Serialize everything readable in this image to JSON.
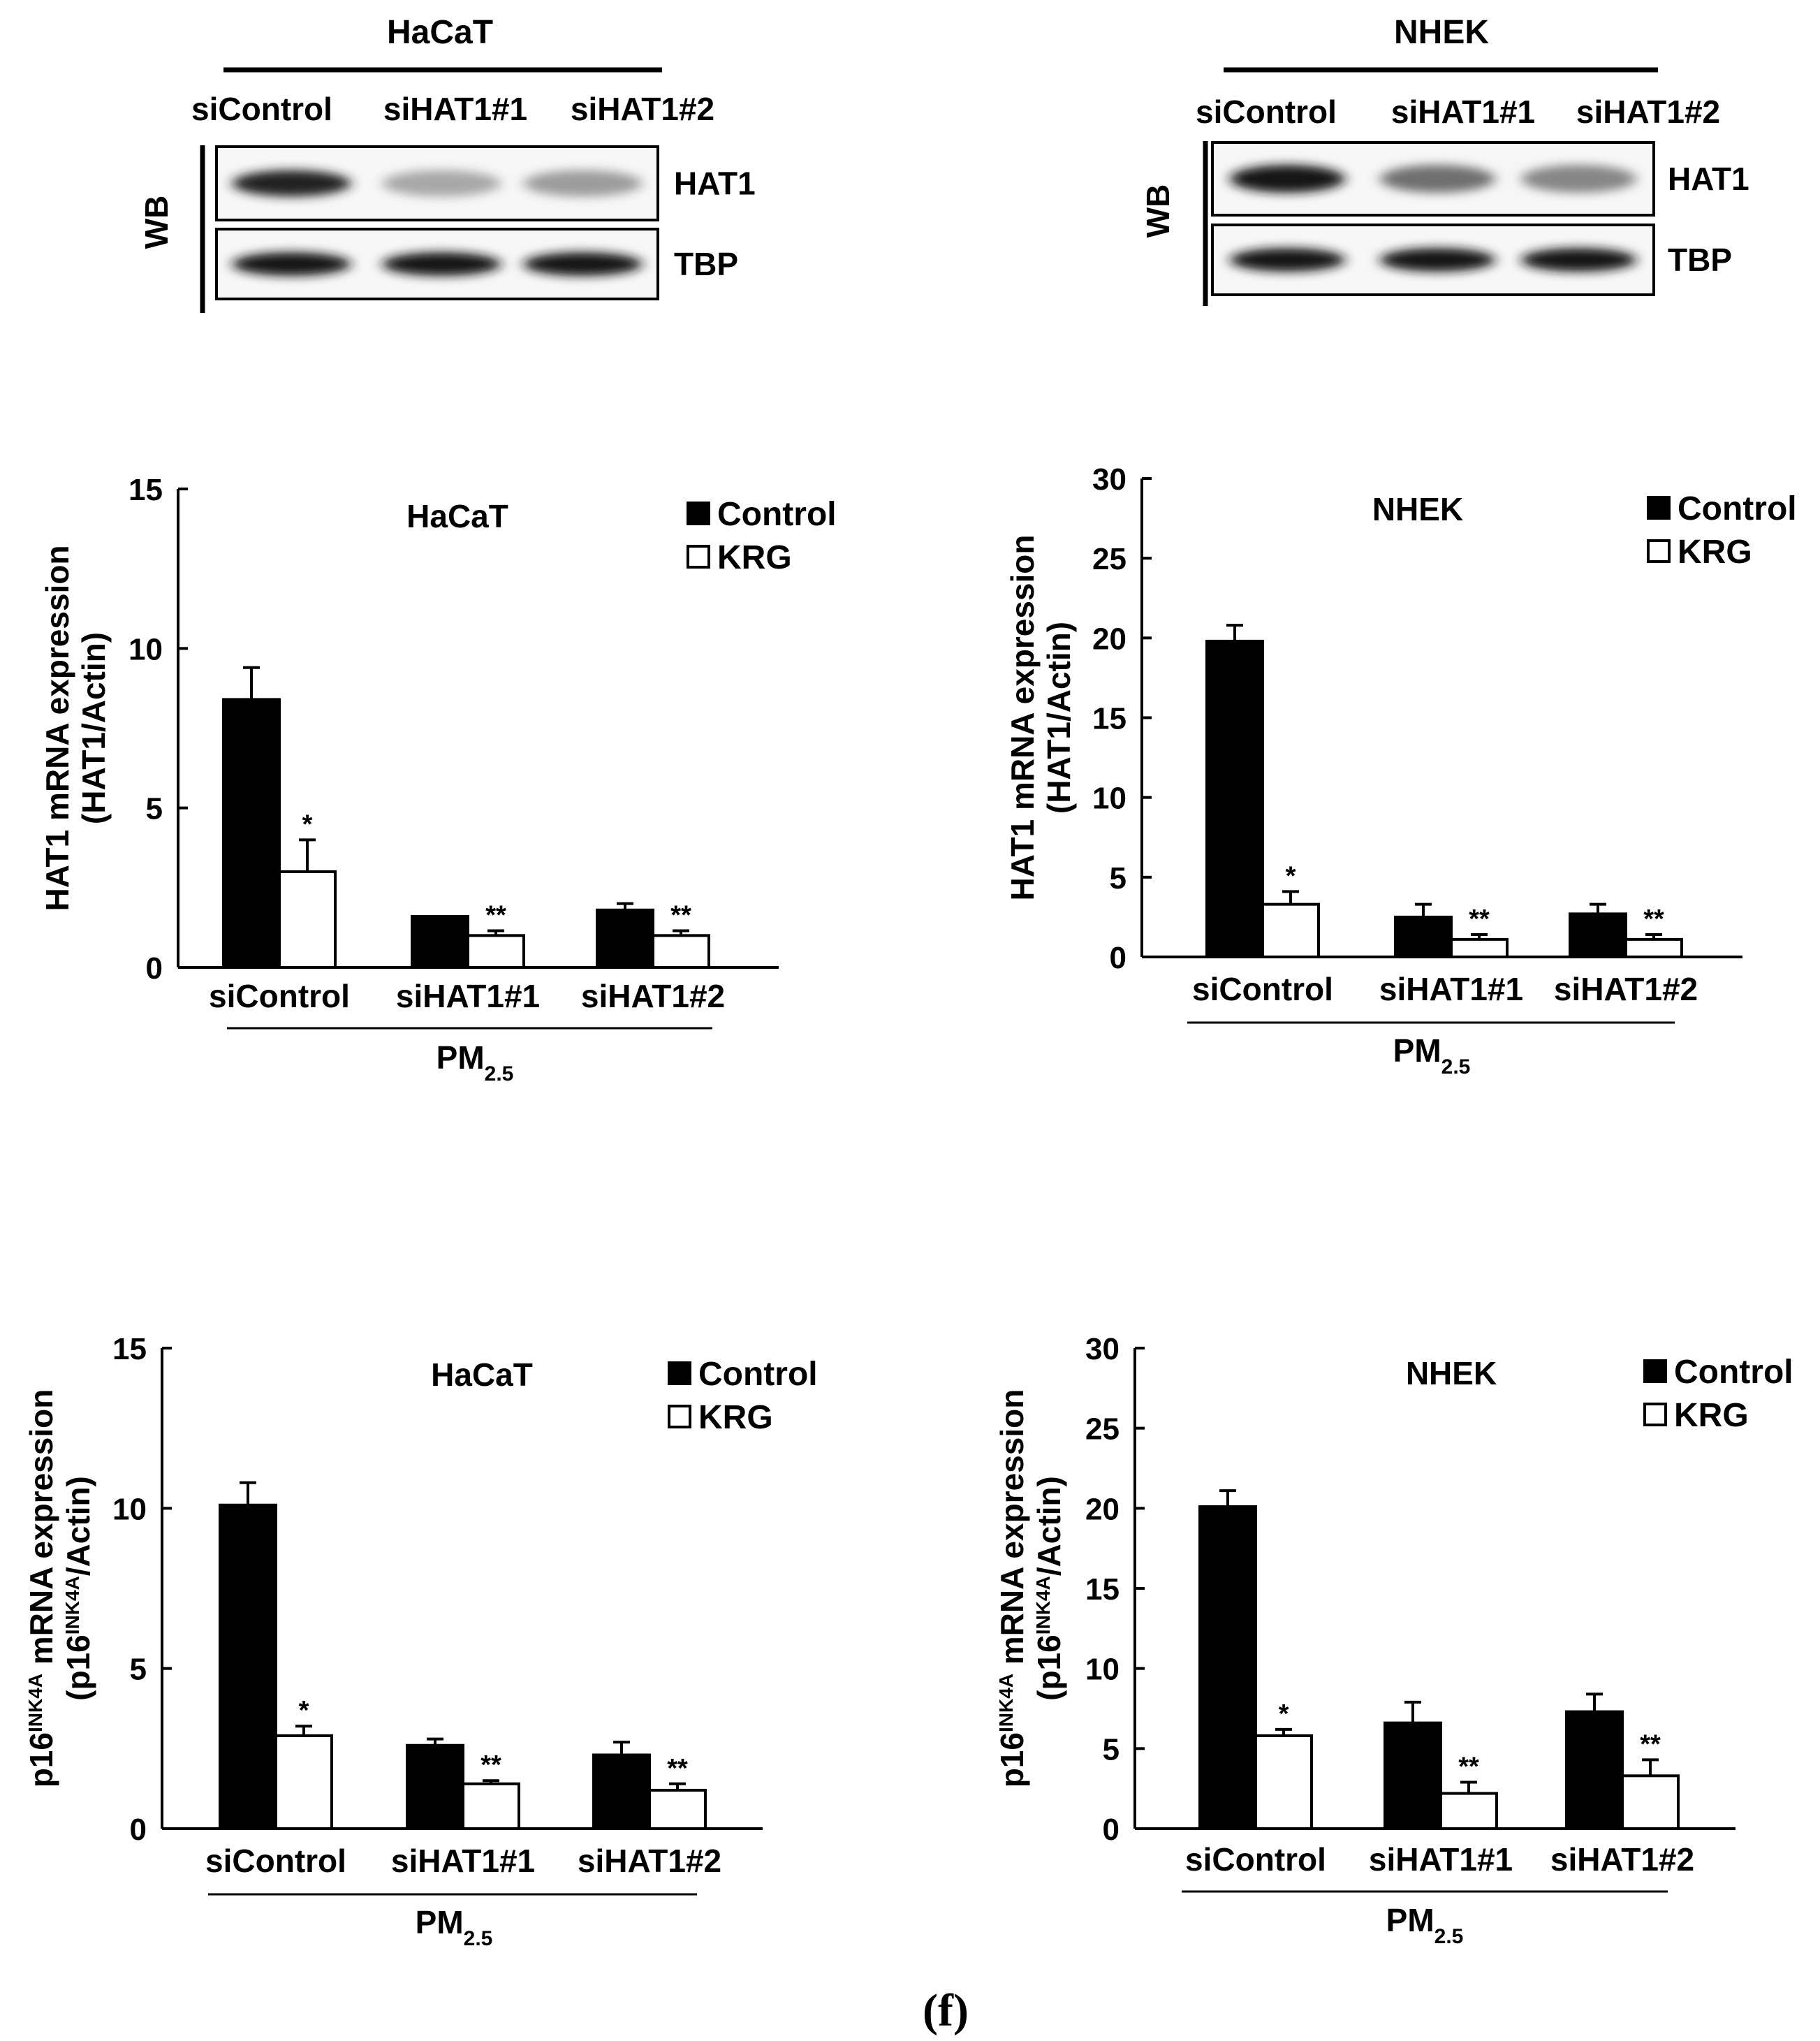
{
  "panel_label": "(f)",
  "western_blots": [
    {
      "cell_line": "HaCaT",
      "lanes": [
        "siControl",
        "siHAT1#1",
        "siHAT1#2"
      ],
      "method_label": "WB",
      "bands": [
        {
          "protein": "HAT1",
          "lane_intensity": [
            0.9,
            0.3,
            0.35
          ]
        },
        {
          "protein": "TBP",
          "lane_intensity": [
            0.95,
            0.95,
            0.95
          ]
        }
      ]
    },
    {
      "cell_line": "NHEK",
      "lanes": [
        "siControl",
        "siHAT1#1",
        "siHAT1#2"
      ],
      "method_label": "WB",
      "bands": [
        {
          "protein": "HAT1",
          "lane_intensity": [
            0.95,
            0.55,
            0.45
          ]
        },
        {
          "protein": "TBP",
          "lane_intensity": [
            0.95,
            0.95,
            0.95
          ]
        }
      ]
    }
  ],
  "chart_data": [
    {
      "type": "bar",
      "title": "HaCaT",
      "ylabel_line1": "HAT1  mRNA expression",
      "ylabel_line2": "(HAT1/Actin)",
      "categories": [
        "siControl",
        "siHAT1#1",
        "siHAT1#2"
      ],
      "group_label": "PM",
      "group_label_sub": "2.5",
      "ylim": [
        0,
        15
      ],
      "yticks": [
        0,
        5,
        10,
        15
      ],
      "series": [
        {
          "name": "Control",
          "fill": "#000000",
          "values": [
            8.4,
            1.6,
            1.8
          ],
          "errors": [
            1.0,
            0,
            0.2
          ],
          "sig": [
            "",
            "",
            ""
          ]
        },
        {
          "name": "KRG",
          "fill": "#ffffff",
          "values": [
            3.0,
            1.0,
            1.0
          ],
          "errors": [
            1.0,
            0.15,
            0.15
          ],
          "sig": [
            "*",
            "**",
            "**"
          ]
        }
      ]
    },
    {
      "type": "bar",
      "title": "NHEK",
      "ylabel_line1": "HAT1  mRNA expression",
      "ylabel_line2": "(HAT1/Actin)",
      "categories": [
        "siControl",
        "siHAT1#1",
        "siHAT1#2"
      ],
      "group_label": "PM",
      "group_label_sub": "2.5",
      "ylim": [
        0,
        30
      ],
      "yticks": [
        0,
        5,
        10,
        15,
        20,
        25,
        30
      ],
      "series": [
        {
          "name": "Control",
          "fill": "#000000",
          "values": [
            19.8,
            2.5,
            2.7
          ],
          "errors": [
            1.0,
            0.8,
            0.6
          ],
          "sig": [
            "",
            "",
            ""
          ]
        },
        {
          "name": "KRG",
          "fill": "#ffffff",
          "values": [
            3.3,
            1.1,
            1.1
          ],
          "errors": [
            0.8,
            0.3,
            0.3
          ],
          "sig": [
            "*",
            "**",
            "**"
          ]
        }
      ]
    },
    {
      "type": "bar",
      "title": "HaCaT",
      "ylabel_line1": "p16",
      "ylabel_line1_sup": "INK4A",
      "ylabel_line1_rest": " mRNA expression",
      "ylabel_line2": "(p16",
      "ylabel_line2_sup": "INK4A",
      "ylabel_line2_rest": "/Actin)",
      "categories": [
        "siControl",
        "siHAT1#1",
        "siHAT1#2"
      ],
      "group_label": "PM",
      "group_label_sub": "2.5",
      "ylim": [
        0,
        15
      ],
      "yticks": [
        0,
        5,
        10,
        15
      ],
      "series": [
        {
          "name": "Control",
          "fill": "#000000",
          "values": [
            10.1,
            2.6,
            2.3
          ],
          "errors": [
            0.7,
            0.2,
            0.4
          ],
          "sig": [
            "",
            "",
            ""
          ]
        },
        {
          "name": "KRG",
          "fill": "#ffffff",
          "values": [
            2.9,
            1.4,
            1.2
          ],
          "errors": [
            0.3,
            0.1,
            0.2
          ],
          "sig": [
            "*",
            "**",
            "**"
          ]
        }
      ]
    },
    {
      "type": "bar",
      "title": "NHEK",
      "ylabel_line1": "p16",
      "ylabel_line1_sup": "INK4A",
      "ylabel_line1_rest": " mRNA expression",
      "ylabel_line2": "(p16",
      "ylabel_line2_sup": "INK4A",
      "ylabel_line2_rest": "/Actin)",
      "categories": [
        "siControl",
        "siHAT1#1",
        "siHAT1#2"
      ],
      "group_label": "PM",
      "group_label_sub": "2.5",
      "ylim": [
        0,
        30
      ],
      "yticks": [
        0,
        5,
        10,
        15,
        20,
        25,
        30
      ],
      "series": [
        {
          "name": "Control",
          "fill": "#000000",
          "values": [
            20.1,
            6.6,
            7.3
          ],
          "errors": [
            1.0,
            1.3,
            1.1
          ],
          "sig": [
            "",
            "",
            ""
          ]
        },
        {
          "name": "KRG",
          "fill": "#ffffff",
          "values": [
            5.8,
            2.2,
            3.3
          ],
          "errors": [
            0.4,
            0.7,
            1.0
          ],
          "sig": [
            "*",
            "**",
            "**"
          ]
        }
      ]
    }
  ]
}
